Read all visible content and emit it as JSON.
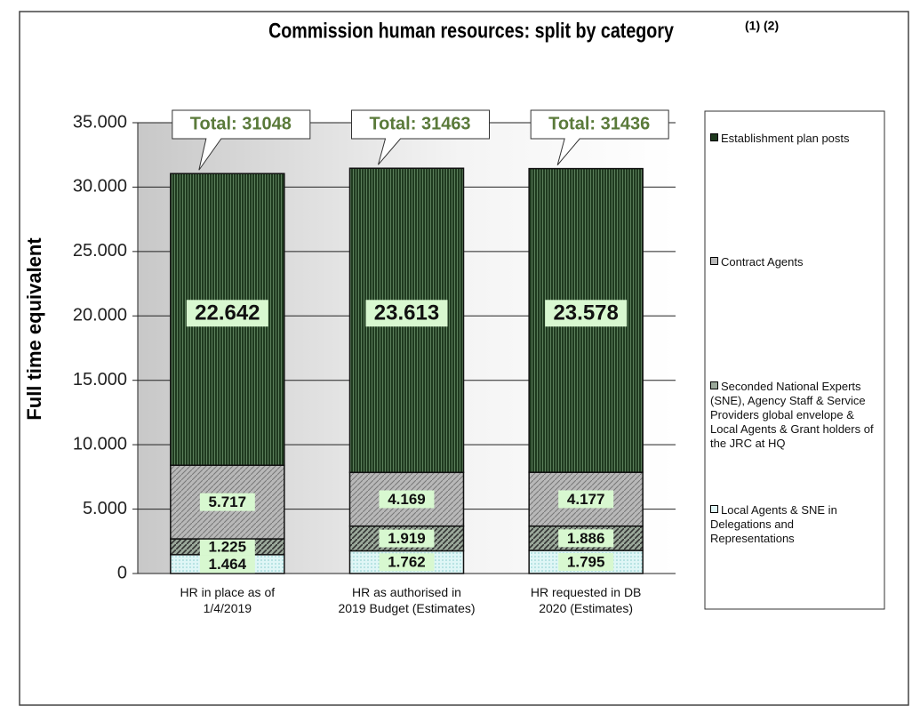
{
  "chart_data": {
    "type": "stacked_bar",
    "title": "Commission human resources: split by category",
    "title_note": "(1) (2)",
    "y_label": "Full time equivalent",
    "categories": [
      "HR in place as of\n1/4/2019",
      "HR as authorised in\n2019 Budget (Estimates)",
      "HR requested in DB\n2020 (Estimates)"
    ],
    "annotations": [
      "Total: 31048",
      "Total: 31463",
      "Total: 31436"
    ],
    "series": [
      {
        "name": "Local Agents & SNE in Delegations and Representations",
        "color": "#dff6f6",
        "values": [
          1464,
          1762,
          1795
        ],
        "value_labels": [
          "1.464",
          "1.762",
          "1.795"
        ]
      },
      {
        "name": "Seconded National Experts (SNE), Agency Staff & Service Providers global envelope  & Local Agents & Grant holders of the JRC at HQ",
        "color": "#9aa89a",
        "values": [
          1225,
          1919,
          1886
        ],
        "value_labels": [
          "1.225",
          "1.919",
          "1.886"
        ]
      },
      {
        "name": "Contract Agents",
        "color": "#b8b8b8",
        "values": [
          5717,
          4169,
          4177
        ],
        "value_labels": [
          "5.717",
          "4.169",
          "4.177"
        ]
      },
      {
        "name": "Establishment plan posts",
        "color": "#1f3a1f",
        "values": [
          22642,
          23613,
          23578
        ],
        "value_labels": [
          "22.642",
          "23.613",
          "23.578"
        ]
      }
    ],
    "ylim": [
      0,
      35000
    ],
    "yticks": [
      0,
      {
        "value": 5000,
        "label": "5.000"
      },
      {
        "value": 10000,
        "label": "10.000"
      },
      {
        "value": 15000,
        "label": "15.000"
      },
      {
        "value": 20000,
        "label": "20.000"
      },
      {
        "value": 25000,
        "label": "25.000"
      },
      {
        "value": 30000,
        "label": "30.000"
      },
      {
        "value": 35000,
        "label": "35.000"
      }
    ],
    "grid": true
  }
}
